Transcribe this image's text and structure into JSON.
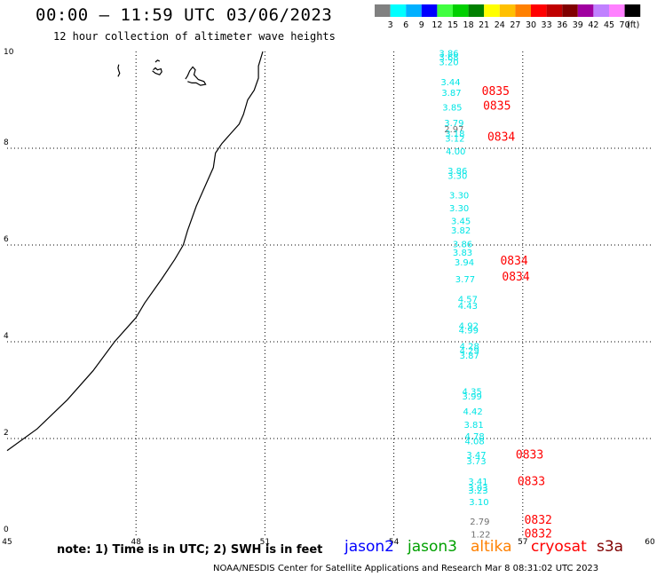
{
  "header": {
    "title": "00:00 – 11:59 UTC 03/06/2023",
    "subtitle": "12 hour collection of altimeter wave heights"
  },
  "colorbar": {
    "colors": [
      "#808080",
      "#00ffff",
      "#00b0ff",
      "#0000ff",
      "#40ff40",
      "#00d000",
      "#008000",
      "#ffff00",
      "#ffc000",
      "#ff8000",
      "#ff0000",
      "#c00000",
      "#800000",
      "#a000a0",
      "#c080ff",
      "#ff80ff",
      "#000000"
    ],
    "labels": [
      "3",
      "6",
      "9",
      "12",
      "15",
      "18",
      "21",
      "24",
      "27",
      "30",
      "33",
      "36",
      "39",
      "42",
      "45",
      "70"
    ],
    "unit": "(ft)"
  },
  "axes": {
    "x_ticks": [
      "45",
      "48",
      "51",
      "54",
      "57",
      "60"
    ],
    "y_ticks": [
      "0",
      "2",
      "4",
      "6",
      "8",
      "10"
    ]
  },
  "colors": {
    "cyan": "#00e5e5",
    "gray": "#707070",
    "time_red": "#ff0000",
    "coast": "#000000",
    "grid": "#000000"
  },
  "readings": [
    {
      "value": "3.86",
      "x": 55.28,
      "y": 9.9,
      "color": "cyan"
    },
    {
      "value": "3.68",
      "x": 55.28,
      "y": 9.82,
      "color": "cyan"
    },
    {
      "value": "3.20",
      "x": 55.28,
      "y": 9.72,
      "color": "cyan"
    },
    {
      "value": "3.44",
      "x": 55.32,
      "y": 9.3,
      "color": "cyan"
    },
    {
      "value": "3.87",
      "x": 55.34,
      "y": 9.08,
      "color": "cyan"
    },
    {
      "value": "3.85",
      "x": 55.36,
      "y": 8.78,
      "color": "cyan"
    },
    {
      "value": "3.79",
      "x": 55.4,
      "y": 8.46,
      "color": "cyan"
    },
    {
      "value": "2.97",
      "x": 55.4,
      "y": 8.33,
      "color": "gray"
    },
    {
      "value": "3.18",
      "x": 55.42,
      "y": 8.24,
      "color": "cyan"
    },
    {
      "value": "3.12",
      "x": 55.42,
      "y": 8.14,
      "color": "cyan"
    },
    {
      "value": "4.00",
      "x": 55.44,
      "y": 7.87,
      "color": "cyan"
    },
    {
      "value": "3.86",
      "x": 55.48,
      "y": 7.47,
      "color": "cyan"
    },
    {
      "value": "3.30",
      "x": 55.48,
      "y": 7.37,
      "color": "cyan"
    },
    {
      "value": "3.30",
      "x": 55.52,
      "y": 6.96,
      "color": "cyan"
    },
    {
      "value": "3.30",
      "x": 55.52,
      "y": 6.7,
      "color": "cyan"
    },
    {
      "value": "3.45",
      "x": 55.56,
      "y": 6.43,
      "color": "cyan"
    },
    {
      "value": "3.82",
      "x": 55.56,
      "y": 6.24,
      "color": "cyan"
    },
    {
      "value": "3.86",
      "x": 55.6,
      "y": 5.95,
      "color": "cyan"
    },
    {
      "value": "3.83",
      "x": 55.6,
      "y": 5.78,
      "color": "cyan"
    },
    {
      "value": "3.94",
      "x": 55.64,
      "y": 5.58,
      "color": "cyan"
    },
    {
      "value": "3.77",
      "x": 55.66,
      "y": 5.23,
      "color": "cyan"
    },
    {
      "value": "4.57",
      "x": 55.72,
      "y": 4.82,
      "color": "cyan"
    },
    {
      "value": "4.43",
      "x": 55.72,
      "y": 4.68,
      "color": "cyan"
    },
    {
      "value": "4.92",
      "x": 55.74,
      "y": 4.27,
      "color": "cyan"
    },
    {
      "value": "4.99",
      "x": 55.74,
      "y": 4.17,
      "color": "cyan"
    },
    {
      "value": "4.28",
      "x": 55.76,
      "y": 3.84,
      "color": "cyan"
    },
    {
      "value": "4.29",
      "x": 55.76,
      "y": 3.75,
      "color": "cyan"
    },
    {
      "value": "3.87",
      "x": 55.76,
      "y": 3.65,
      "color": "cyan"
    },
    {
      "value": "4.35",
      "x": 55.82,
      "y": 2.91,
      "color": "cyan"
    },
    {
      "value": "3.99",
      "x": 55.82,
      "y": 2.81,
      "color": "cyan"
    },
    {
      "value": "4.42",
      "x": 55.84,
      "y": 2.5,
      "color": "cyan"
    },
    {
      "value": "3.81",
      "x": 55.86,
      "y": 2.22,
      "color": "cyan"
    },
    {
      "value": "4.78",
      "x": 55.88,
      "y": 1.98,
      "color": "cyan"
    },
    {
      "value": "4.08",
      "x": 55.88,
      "y": 1.88,
      "color": "cyan"
    },
    {
      "value": "3.47",
      "x": 55.92,
      "y": 1.6,
      "color": "cyan"
    },
    {
      "value": "3.73",
      "x": 55.92,
      "y": 1.47,
      "color": "cyan"
    },
    {
      "value": "3.41",
      "x": 55.96,
      "y": 1.05,
      "color": "cyan"
    },
    {
      "value": "3.03",
      "x": 55.96,
      "y": 0.92,
      "color": "cyan"
    },
    {
      "value": "3.23",
      "x": 55.96,
      "y": 0.86,
      "color": "cyan"
    },
    {
      "value": "3.10",
      "x": 55.98,
      "y": 0.62,
      "color": "cyan"
    },
    {
      "value": "2.79",
      "x": 56.0,
      "y": 0.22,
      "color": "gray"
    },
    {
      "value": "1.22",
      "x": 56.02,
      "y": -0.05,
      "color": "gray"
    }
  ],
  "times": [
    {
      "value": "0835",
      "x": 56.37,
      "y": 9.1
    },
    {
      "value": "0835",
      "x": 56.4,
      "y": 8.8
    },
    {
      "value": "0834",
      "x": 56.5,
      "y": 8.16
    },
    {
      "value": "0834",
      "x": 56.8,
      "y": 5.6
    },
    {
      "value": "0834",
      "x": 56.84,
      "y": 5.27
    },
    {
      "value": "0833",
      "x": 57.16,
      "y": 1.59
    },
    {
      "value": "0833",
      "x": 57.2,
      "y": 1.04
    },
    {
      "value": "0832",
      "x": 57.36,
      "y": 0.24
    },
    {
      "value": "0832",
      "x": 57.36,
      "y": -0.05
    }
  ],
  "coastline": [
    [
      45.0,
      1.75
    ],
    [
      45.7,
      2.2
    ],
    [
      46.4,
      2.8
    ],
    [
      47.0,
      3.4
    ],
    [
      47.5,
      4.0
    ],
    [
      47.9,
      4.4
    ],
    [
      48.0,
      4.5
    ],
    [
      48.2,
      4.8
    ],
    [
      48.6,
      5.3
    ],
    [
      48.9,
      5.7
    ],
    [
      49.1,
      6.0
    ],
    [
      49.2,
      6.3
    ],
    [
      49.4,
      6.8
    ],
    [
      49.6,
      7.2
    ],
    [
      49.8,
      7.6
    ],
    [
      49.85,
      7.9
    ],
    [
      50.0,
      8.1
    ],
    [
      50.2,
      8.3
    ],
    [
      50.4,
      8.5
    ],
    [
      50.5,
      8.7
    ],
    [
      50.6,
      9.0
    ],
    [
      50.75,
      9.2
    ],
    [
      50.85,
      9.45
    ],
    [
      50.85,
      9.7
    ],
    [
      50.95,
      10.0
    ]
  ],
  "islands": [
    [
      [
        47.58,
        9.48
      ],
      [
        47.62,
        9.55
      ],
      [
        47.6,
        9.6
      ],
      [
        47.58,
        9.66
      ],
      [
        47.6,
        9.73
      ]
    ],
    [
      [
        48.38,
        9.6
      ],
      [
        48.45,
        9.55
      ],
      [
        48.55,
        9.52
      ],
      [
        48.6,
        9.58
      ],
      [
        48.58,
        9.64
      ],
      [
        48.5,
        9.62
      ],
      [
        48.45,
        9.66
      ],
      [
        48.4,
        9.62
      ]
    ],
    [
      [
        48.45,
        9.78
      ],
      [
        48.5,
        9.82
      ],
      [
        48.55,
        9.8
      ]
    ],
    [
      [
        49.15,
        9.43
      ],
      [
        49.2,
        9.5
      ],
      [
        49.25,
        9.6
      ],
      [
        49.32,
        9.68
      ],
      [
        49.38,
        9.62
      ],
      [
        49.35,
        9.52
      ],
      [
        49.45,
        9.42
      ],
      [
        49.58,
        9.38
      ],
      [
        49.62,
        9.32
      ],
      [
        49.5,
        9.3
      ],
      [
        49.4,
        9.35
      ],
      [
        49.3,
        9.35
      ],
      [
        49.2,
        9.38
      ]
    ]
  ],
  "footer": {
    "note": "note: 1) Time is in UTC; 2) SWH is in feet",
    "credit": "NOAA/NESDIS Center for Satellite Applications and Research    Mar  8 08:31:02 UTC 2023",
    "satellites": [
      {
        "name": "jason2",
        "color": "#0000ff"
      },
      {
        "name": "jason3",
        "color": "#00a000"
      },
      {
        "name": "altika",
        "color": "#ff8000"
      },
      {
        "name": "cryosat",
        "color": "#ff0000"
      },
      {
        "name": "s3a",
        "color": "#800000"
      }
    ]
  }
}
